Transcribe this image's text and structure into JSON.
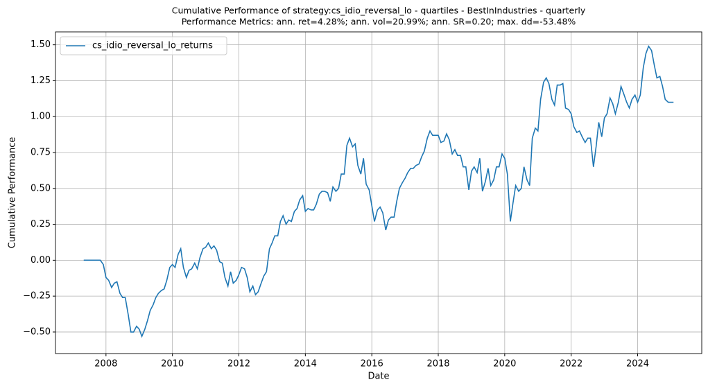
{
  "chart_data": {
    "type": "line",
    "title": "Cumulative Performance of strategy:cs_idio_reversal_lo - quartiles - BestInIndustries - quarterly",
    "subtitle": "Performance Metrics: ann. ret=4.28%; ann. vol=20.99%; ann. SR=0.20; max. dd=-53.48%",
    "x_label": "Date",
    "y_label": "Cumulative Performance",
    "x": [
      2007.33,
      2007.83,
      2007.92,
      2008.0,
      2008.08,
      2008.17,
      2008.25,
      2008.33,
      2008.42,
      2008.5,
      2008.58,
      2008.67,
      2008.75,
      2008.83,
      2008.92,
      2009.0,
      2009.08,
      2009.17,
      2009.25,
      2009.33,
      2009.42,
      2009.5,
      2009.58,
      2009.67,
      2009.75,
      2009.83,
      2009.92,
      2010.0,
      2010.08,
      2010.17,
      2010.25,
      2010.33,
      2010.42,
      2010.5,
      2010.58,
      2010.67,
      2010.75,
      2010.83,
      2010.92,
      2011.0,
      2011.08,
      2011.17,
      2011.25,
      2011.33,
      2011.42,
      2011.5,
      2011.58,
      2011.67,
      2011.75,
      2011.83,
      2011.92,
      2012.0,
      2012.08,
      2012.17,
      2012.25,
      2012.33,
      2012.42,
      2012.5,
      2012.58,
      2012.67,
      2012.75,
      2012.83,
      2012.92,
      2013.0,
      2013.08,
      2013.17,
      2013.25,
      2013.33,
      2013.42,
      2013.5,
      2013.58,
      2013.67,
      2013.75,
      2013.83,
      2013.92,
      2014.0,
      2014.08,
      2014.17,
      2014.25,
      2014.33,
      2014.42,
      2014.5,
      2014.58,
      2014.67,
      2014.75,
      2014.83,
      2014.92,
      2015.0,
      2015.08,
      2015.17,
      2015.25,
      2015.33,
      2015.42,
      2015.5,
      2015.58,
      2015.67,
      2015.75,
      2015.83,
      2015.92,
      2016.0,
      2016.08,
      2016.17,
      2016.25,
      2016.33,
      2016.42,
      2016.5,
      2016.58,
      2016.67,
      2016.75,
      2016.83,
      2016.92,
      2017.0,
      2017.08,
      2017.17,
      2017.25,
      2017.33,
      2017.42,
      2017.5,
      2017.58,
      2017.67,
      2017.75,
      2017.83,
      2017.92,
      2018.0,
      2018.08,
      2018.17,
      2018.25,
      2018.33,
      2018.42,
      2018.5,
      2018.58,
      2018.67,
      2018.75,
      2018.83,
      2018.92,
      2019.0,
      2019.08,
      2019.17,
      2019.25,
      2019.33,
      2019.42,
      2019.5,
      2019.58,
      2019.67,
      2019.75,
      2019.83,
      2019.92,
      2020.0,
      2020.08,
      2020.17,
      2020.25,
      2020.33,
      2020.42,
      2020.5,
      2020.58,
      2020.67,
      2020.75,
      2020.83,
      2020.92,
      2021.0,
      2021.08,
      2021.17,
      2021.25,
      2021.33,
      2021.42,
      2021.5,
      2021.58,
      2021.67,
      2021.75,
      2021.83,
      2021.92,
      2022.0,
      2022.08,
      2022.17,
      2022.25,
      2022.33,
      2022.42,
      2022.5,
      2022.58,
      2022.67,
      2022.75,
      2022.83,
      2022.92,
      2023.0,
      2023.08,
      2023.17,
      2023.25,
      2023.33,
      2023.42,
      2023.5,
      2023.58,
      2023.67,
      2023.75,
      2023.83,
      2023.92,
      2024.0,
      2024.08,
      2024.17,
      2024.25,
      2024.33,
      2024.42,
      2024.5,
      2024.58,
      2024.67,
      2024.75,
      2024.83,
      2024.92,
      2025.0,
      2025.08
    ],
    "series": [
      {
        "name": "cs_idio_reversal_lo_returns",
        "color": "#1f77b4",
        "values": [
          0.0,
          0.0,
          -0.03,
          -0.12,
          -0.14,
          -0.19,
          -0.16,
          -0.15,
          -0.23,
          -0.26,
          -0.26,
          -0.38,
          -0.5,
          -0.5,
          -0.46,
          -0.48,
          -0.53,
          -0.48,
          -0.42,
          -0.35,
          -0.31,
          -0.26,
          -0.23,
          -0.21,
          -0.2,
          -0.14,
          -0.05,
          -0.03,
          -0.05,
          0.04,
          0.08,
          -0.05,
          -0.12,
          -0.07,
          -0.06,
          -0.02,
          -0.06,
          0.02,
          0.08,
          0.09,
          0.12,
          0.08,
          0.1,
          0.07,
          -0.01,
          -0.02,
          -0.12,
          -0.18,
          -0.08,
          -0.16,
          -0.14,
          -0.1,
          -0.05,
          -0.06,
          -0.12,
          -0.22,
          -0.18,
          -0.24,
          -0.22,
          -0.16,
          -0.11,
          -0.08,
          0.08,
          0.12,
          0.17,
          0.17,
          0.27,
          0.31,
          0.25,
          0.28,
          0.27,
          0.34,
          0.36,
          0.42,
          0.45,
          0.34,
          0.36,
          0.35,
          0.35,
          0.39,
          0.46,
          0.48,
          0.48,
          0.47,
          0.41,
          0.51,
          0.48,
          0.5,
          0.6,
          0.6,
          0.8,
          0.85,
          0.79,
          0.81,
          0.66,
          0.6,
          0.71,
          0.53,
          0.49,
          0.38,
          0.27,
          0.35,
          0.37,
          0.33,
          0.21,
          0.28,
          0.3,
          0.3,
          0.41,
          0.5,
          0.54,
          0.57,
          0.61,
          0.64,
          0.64,
          0.66,
          0.67,
          0.72,
          0.76,
          0.85,
          0.9,
          0.87,
          0.87,
          0.87,
          0.82,
          0.83,
          0.88,
          0.84,
          0.74,
          0.77,
          0.73,
          0.73,
          0.65,
          0.65,
          0.49,
          0.62,
          0.65,
          0.61,
          0.71,
          0.48,
          0.55,
          0.64,
          0.52,
          0.56,
          0.65,
          0.65,
          0.74,
          0.71,
          0.6,
          0.27,
          0.4,
          0.52,
          0.48,
          0.5,
          0.65,
          0.56,
          0.52,
          0.85,
          0.92,
          0.9,
          1.12,
          1.24,
          1.27,
          1.23,
          1.12,
          1.08,
          1.22,
          1.22,
          1.23,
          1.06,
          1.05,
          1.02,
          0.93,
          0.89,
          0.9,
          0.86,
          0.82,
          0.85,
          0.85,
          0.65,
          0.79,
          0.96,
          0.86,
          0.99,
          1.02,
          1.13,
          1.09,
          1.02,
          1.1,
          1.21,
          1.16,
          1.1,
          1.06,
          1.12,
          1.15,
          1.1,
          1.15,
          1.34,
          1.44,
          1.49,
          1.46,
          1.36,
          1.27,
          1.28,
          1.21,
          1.12,
          1.1,
          1.1,
          1.1
        ]
      }
    ],
    "xlim": [
      2006.48,
      2025.93
    ],
    "xticks": [
      2008,
      2010,
      2012,
      2014,
      2016,
      2018,
      2020,
      2022,
      2024
    ],
    "ylim": [
      -0.65,
      1.59
    ],
    "yticks": [
      {
        "value": -0.5,
        "label": "−0.50"
      },
      {
        "value": -0.25,
        "label": "−0.25"
      },
      {
        "value": 0,
        "label": "0.00"
      },
      {
        "value": 0.25,
        "label": "0.25"
      },
      {
        "value": 0.5,
        "label": "0.50"
      },
      {
        "value": 0.75,
        "label": "0.75"
      },
      {
        "value": 1.0,
        "label": "1.00"
      },
      {
        "value": 1.25,
        "label": "1.25"
      },
      {
        "value": 1.5,
        "label": "1.50"
      }
    ],
    "grid": true,
    "legend": "upper-left"
  }
}
